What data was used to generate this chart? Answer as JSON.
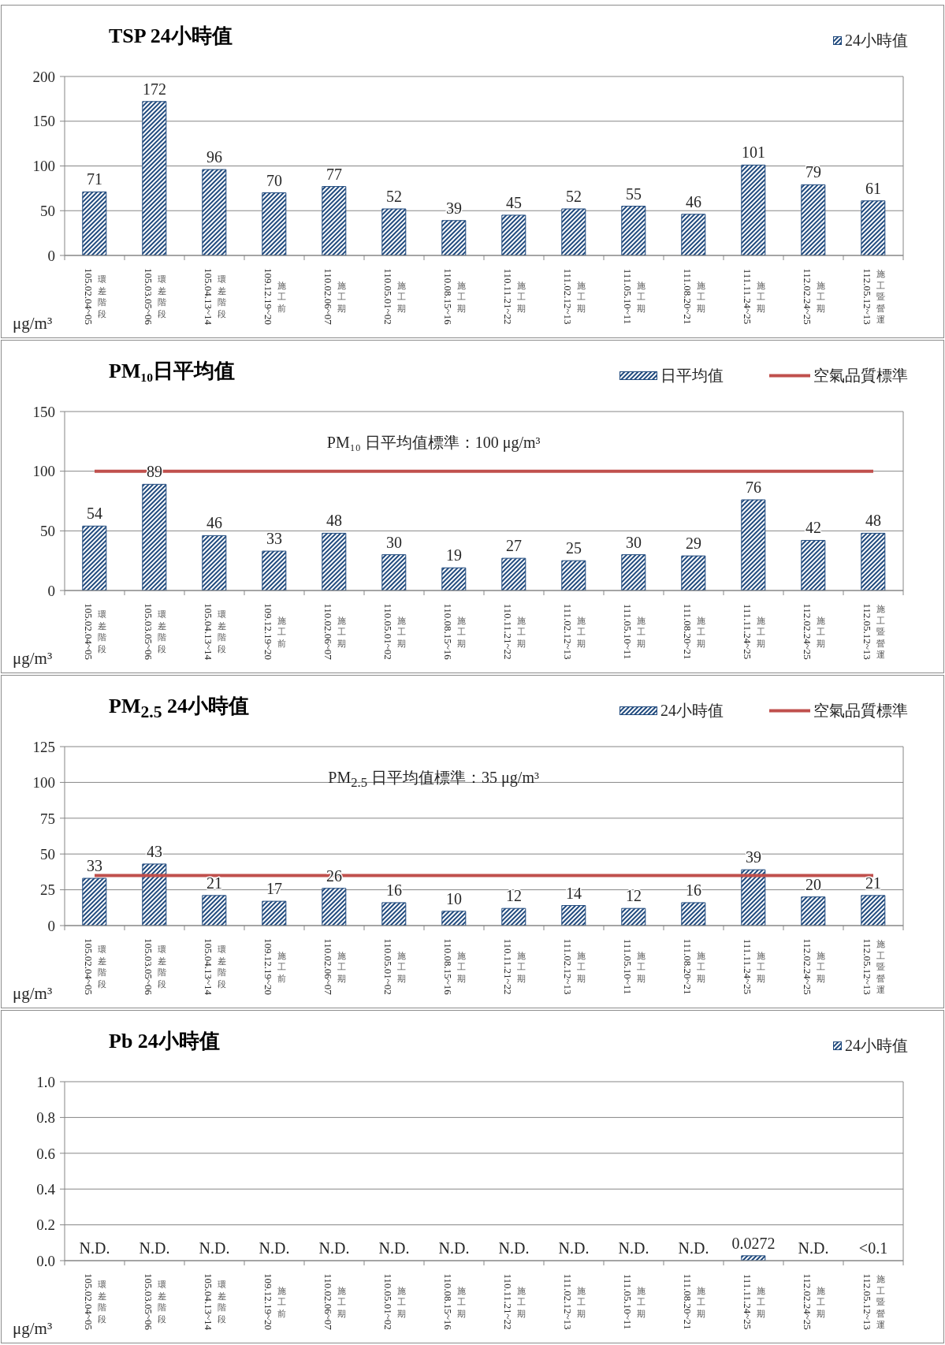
{
  "chart_data": [
    {
      "type": "bar",
      "title": "TSP 24小時值",
      "ylabel": "μg/m³",
      "categories": [
        "105.02.04~05\n環差階段",
        "105.03.05~06\n環差階段",
        "105.04.13~14\n環差階段",
        "109.12.19~20\n施工前",
        "110.02.06~07\n施工期",
        "110.05.01~02\n施工期",
        "110.08.15~16\n施工期",
        "110.11.21~22\n施工期",
        "111.02.12~13\n施工期",
        "111.05.10~11\n施工期",
        "111.08.20~21\n施工期",
        "111.11.24~25\n施工期",
        "112.02.24~25\n施工期",
        "112.05.12~13\n施工暨營運"
      ],
      "series": [
        {
          "name": "24小時值",
          "color": "#1f497d",
          "values": [
            71,
            172,
            96,
            70,
            77,
            52,
            39,
            45,
            52,
            55,
            46,
            101,
            79,
            61
          ]
        }
      ],
      "ylim": [
        0,
        200
      ],
      "yticks": [
        0,
        50,
        100,
        150,
        200
      ],
      "grid": "y",
      "legend": "top right",
      "data_labels": true
    },
    {
      "type": "bar",
      "title": "PM₁₀日平均值",
      "ylabel": "μg/m³",
      "categories": [
        "105.02.04~05\n環差階段",
        "105.03.05~06\n環差階段",
        "105.04.13~14\n環差階段",
        "109.12.19~20\n施工前",
        "110.02.06~07\n施工期",
        "110.05.01~02\n施工期",
        "110.08.15~16\n施工期",
        "110.11.21~22\n施工期",
        "111.02.12~13\n施工期",
        "111.05.10~11\n施工期",
        "111.08.20~21\n施工期",
        "111.11.24~25\n施工期",
        "112.02.24~25\n施工期",
        "112.05.12~13\n施工暨營運"
      ],
      "series": [
        {
          "name": "日平均值",
          "color": "#1f497d",
          "values": [
            54,
            89,
            46,
            33,
            48,
            30,
            19,
            27,
            25,
            30,
            29,
            76,
            42,
            48
          ]
        }
      ],
      "ylim": [
        0,
        150
      ],
      "yticks": [
        0,
        50,
        100,
        150
      ],
      "grid": "y",
      "legend": "top right",
      "data_labels": true,
      "ref_lines": [
        {
          "axis": "y",
          "value": 100,
          "label": "空氣品質標準",
          "color": "#c0504d"
        }
      ],
      "annotations": [
        "PM₁₀ 日平均值標準：100 μg/m³"
      ]
    },
    {
      "type": "bar",
      "title": "PM$_{2.5}$ 24小時值",
      "ylabel": "μg/m³",
      "categories": [
        "105.02.04~05\n環差階段",
        "105.03.05~06\n環差階段",
        "105.04.13~14\n環差階段",
        "109.12.19~20\n施工前",
        "110.02.06~07\n施工期",
        "110.05.01~02\n施工期",
        "110.08.15~16\n施工期",
        "110.11.21~22\n施工期",
        "111.02.12~13\n施工期",
        "111.05.10~11\n施工期",
        "111.08.20~21\n施工期",
        "111.11.24~25\n施工期",
        "112.02.24~25\n施工期",
        "112.05.12~13\n施工暨營運"
      ],
      "series": [
        {
          "name": "24小時值",
          "color": "#1f497d",
          "values": [
            33,
            43,
            21,
            17,
            26,
            16,
            10,
            12,
            14,
            12,
            16,
            39,
            20,
            21
          ]
        }
      ],
      "ylim": [
        0,
        125
      ],
      "yticks": [
        0,
        25,
        50,
        75,
        100,
        125
      ],
      "grid": "y",
      "legend": "top right",
      "data_labels": true,
      "ref_lines": [
        {
          "axis": "y",
          "value": 35,
          "label": "空氣品質標準",
          "color": "#c0504d"
        }
      ],
      "annotations": [
        "PM$_{2.5}$ 日平均值標準：35 μg/m³"
      ]
    },
    {
      "type": "bar",
      "title": "Pb 24小時值",
      "ylabel": "μg/m³",
      "categories": [
        "105.02.04~05\n環差階段",
        "105.03.05~06\n環差階段",
        "105.04.13~14\n環差階段",
        "109.12.19~20\n施工前",
        "110.02.06~07\n施工期",
        "110.05.01~02\n施工期",
        "110.08.15~16\n施工期",
        "110.11.21~22\n施工期",
        "111.02.12~13\n施工期",
        "111.05.10~11\n施工期",
        "111.08.20~21\n施工期",
        "111.11.24~25\n施工期",
        "112.02.24~25\n施工期",
        "112.05.12~13\n施工暨營運"
      ],
      "series": [
        {
          "name": "24小時值",
          "color": "#1f497d",
          "values": [
            null,
            null,
            null,
            null,
            null,
            null,
            null,
            null,
            null,
            null,
            null,
            0.0272,
            null,
            null
          ],
          "value_labels": [
            "N.D.",
            "N.D.",
            "N.D.",
            "N.D.",
            "N.D.",
            "N.D.",
            "N.D.",
            "N.D.",
            "N.D.",
            "N.D.",
            "N.D.",
            "0.0272",
            "N.D.",
            "<0.1"
          ]
        }
      ],
      "ylim": [
        0,
        1
      ],
      "yticks": [
        {
          "value": 0,
          "label": "0.0"
        },
        0.2,
        0.4,
        0.6,
        0.8,
        {
          "value": 1,
          "label": "1.0"
        }
      ],
      "grid": "y",
      "legend": "top right"
    }
  ]
}
